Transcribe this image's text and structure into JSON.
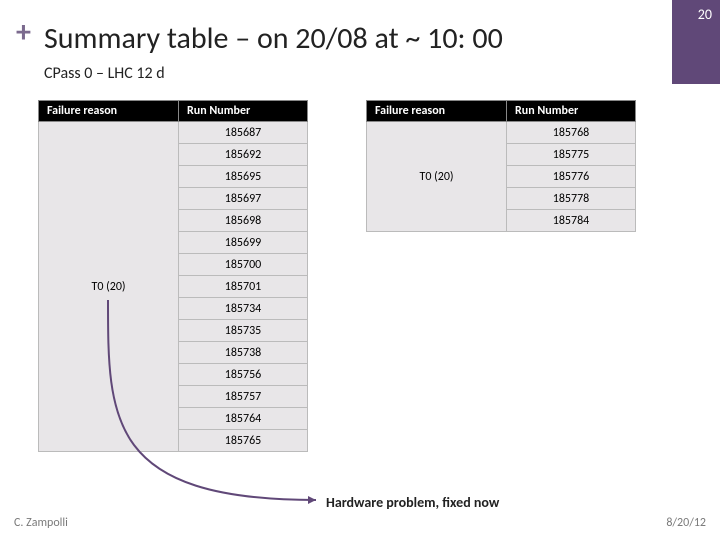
{
  "pageNumber": "20",
  "plus": "+",
  "title": "Summary table – on 20/08 at ~ 10: 00",
  "subtitle": "CPass 0 – LHC 12 d",
  "table1": {
    "headers": [
      "Failure reason",
      "Run Number"
    ],
    "reason": "T0 (20)",
    "runs": [
      "185687",
      "185692",
      "185695",
      "185697",
      "185698",
      "185699",
      "185700",
      "185701",
      "185734",
      "185735",
      "185738",
      "185756",
      "185757",
      "185764",
      "185765"
    ]
  },
  "table2": {
    "headers": [
      "Failure reason",
      "Run Number"
    ],
    "reason": "T0 (20)",
    "runs": [
      "185768",
      "185775",
      "185776",
      "185778",
      "185784"
    ]
  },
  "note": "Hardware problem, fixed now",
  "footerLeft": "C. Zampolli",
  "footerRight": "8/20/12",
  "colors": {
    "accent": "#604878",
    "plus": "#7b6a8e",
    "headerBg": "#000000",
    "headerFg": "#ffffff",
    "cellBg": "#e8e6e8"
  }
}
